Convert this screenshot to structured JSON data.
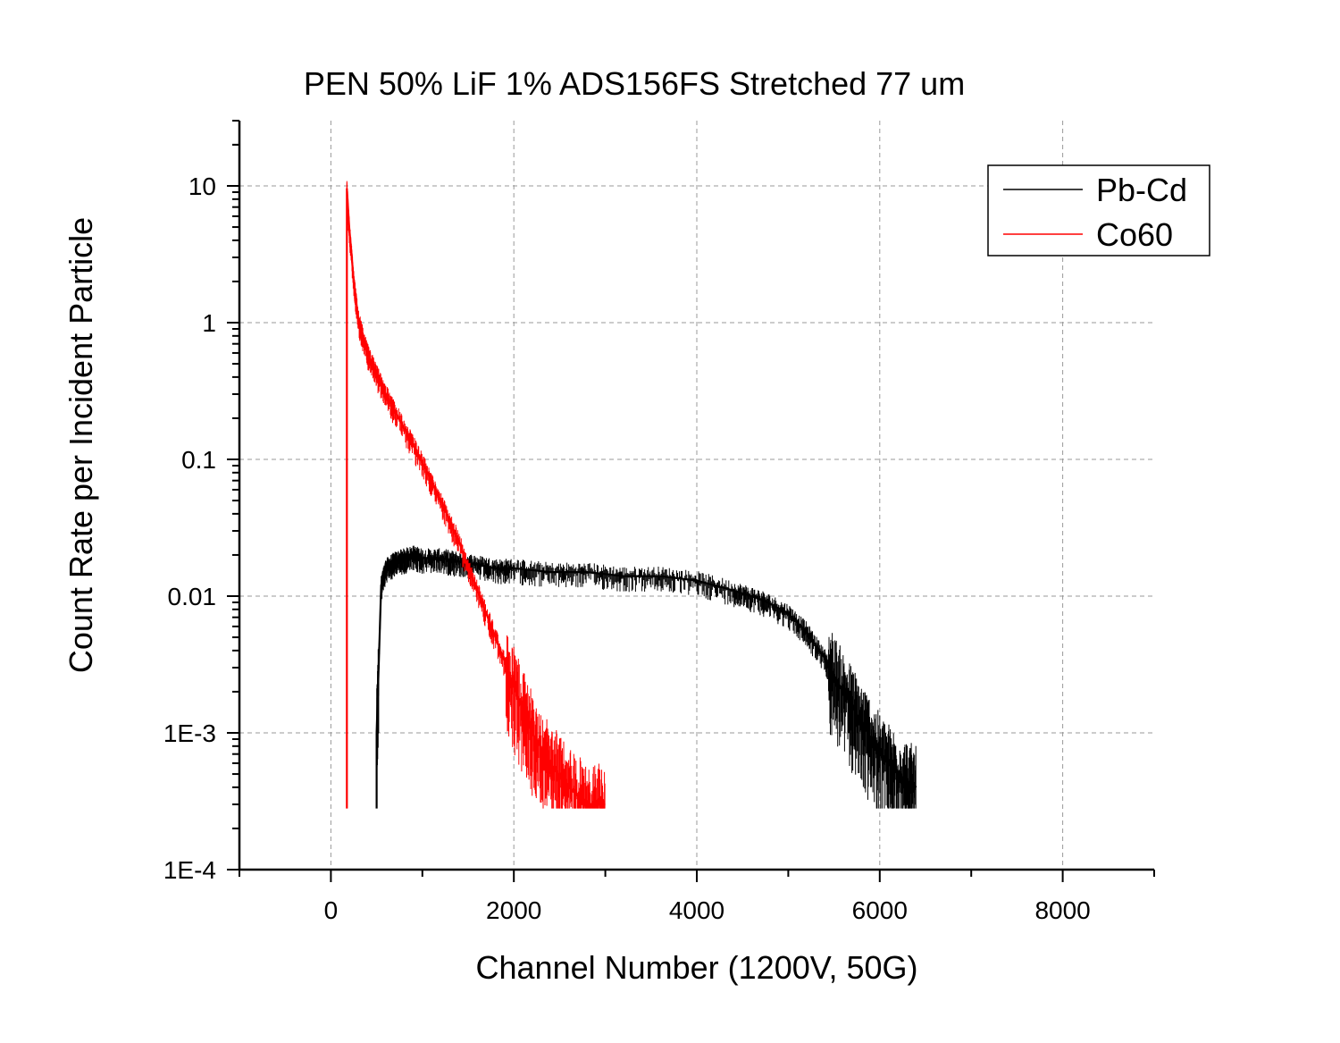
{
  "chart_data": {
    "type": "line",
    "title": "PEN 50% LiF 1% ADS156FS Stretched 77 um",
    "xlabel": "Channel Number (1200V, 50G)",
    "ylabel": "Count Rate per Incident Particle",
    "xlim": [
      -1000,
      9000
    ],
    "ylim": [
      0.0001,
      30
    ],
    "yscale": "log",
    "grid": true,
    "legend_position": "top-right",
    "x_ticks": [
      {
        "value": 0,
        "label": "0"
      },
      {
        "value": 2000,
        "label": "2000"
      },
      {
        "value": 4000,
        "label": "4000"
      },
      {
        "value": 6000,
        "label": "6000"
      },
      {
        "value": 8000,
        "label": "8000"
      }
    ],
    "y_ticks": [
      {
        "value": 0.0001,
        "label": "1E-4"
      },
      {
        "value": 0.001,
        "label": "1E-3"
      },
      {
        "value": 0.01,
        "label": "0.01"
      },
      {
        "value": 0.1,
        "label": "0.1"
      },
      {
        "value": 1,
        "label": "1"
      },
      {
        "value": 10,
        "label": "10"
      }
    ],
    "series": [
      {
        "name": "Pb-Cd",
        "color": "#000000",
        "x": [
          500,
          550,
          600,
          700,
          800,
          900,
          1000,
          1200,
          1400,
          1600,
          1800,
          2000,
          2400,
          2800,
          3200,
          3600,
          4000,
          4400,
          4700,
          5000,
          5200,
          5400,
          5600,
          5800,
          6000,
          6200,
          6400
        ],
        "y": [
          0.001,
          0.012,
          0.016,
          0.018,
          0.019,
          0.02,
          0.019,
          0.019,
          0.018,
          0.017,
          0.016,
          0.016,
          0.015,
          0.015,
          0.014,
          0.014,
          0.013,
          0.011,
          0.0095,
          0.0075,
          0.0055,
          0.0035,
          0.002,
          0.0012,
          0.0007,
          0.0005,
          0.0004
        ]
      },
      {
        "name": "Co60",
        "color": "#ff0000",
        "x": [
          175,
          200,
          250,
          300,
          400,
          500,
          600,
          800,
          1000,
          1200,
          1400,
          1600,
          1800,
          2000,
          2200,
          2400,
          2600,
          2800,
          3000
        ],
        "y": [
          9.5,
          5.0,
          2.0,
          1.05,
          0.6,
          0.42,
          0.3,
          0.17,
          0.095,
          0.05,
          0.025,
          0.011,
          0.005,
          0.0022,
          0.001,
          0.0006,
          0.0004,
          0.0003,
          0.0003
        ]
      }
    ]
  }
}
